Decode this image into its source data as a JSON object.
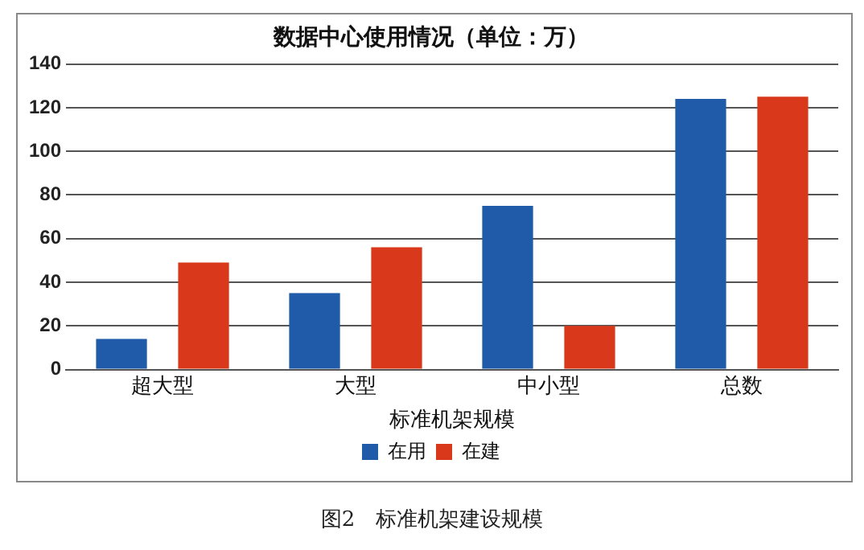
{
  "chart_data": {
    "type": "bar",
    "title": "数据中心使用情况（单位：万）",
    "xlabel": "标准机架规模",
    "categories": [
      "超大型",
      "大型",
      "中小型",
      "总数"
    ],
    "series": [
      {
        "name": "在用",
        "color": "#1f5ba8",
        "values": [
          14,
          35,
          75,
          124
        ]
      },
      {
        "name": "在建",
        "color": "#d9391a",
        "values": [
          49,
          56,
          20,
          125
        ]
      }
    ],
    "ylim": [
      0,
      140
    ],
    "yticks": [
      0,
      20,
      40,
      60,
      80,
      100,
      120,
      140
    ],
    "grid": "y",
    "legend": "bottom",
    "annotations": [
      "图2　标准机架建设规模"
    ]
  }
}
